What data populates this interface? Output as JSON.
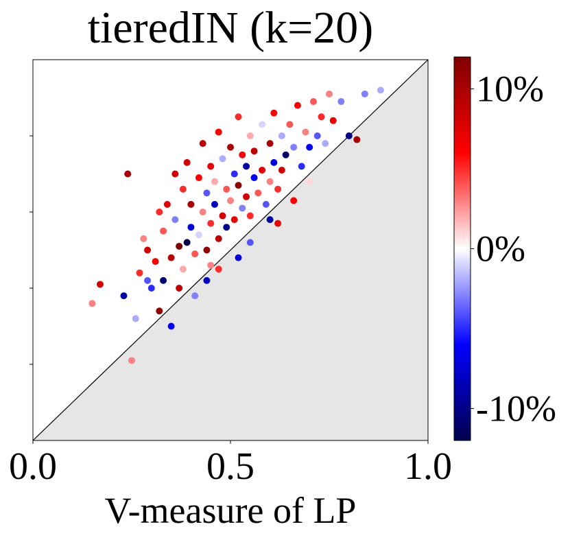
{
  "chart_data": {
    "type": "scatter",
    "title": "tieredIN (k=20)",
    "xlabel": "V-measure of LP",
    "x": [
      0.15,
      0.17,
      0.23,
      0.25,
      0.24,
      0.26,
      0.27,
      0.28,
      0.29,
      0.3,
      0.31,
      0.32,
      0.33,
      0.33,
      0.34,
      0.35,
      0.36,
      0.37,
      0.38,
      0.38,
      0.39,
      0.4,
      0.4,
      0.41,
      0.42,
      0.42,
      0.43,
      0.43,
      0.44,
      0.44,
      0.45,
      0.45,
      0.46,
      0.46,
      0.47,
      0.47,
      0.48,
      0.48,
      0.49,
      0.49,
      0.5,
      0.5,
      0.51,
      0.51,
      0.52,
      0.52,
      0.53,
      0.53,
      0.54,
      0.54,
      0.55,
      0.55,
      0.56,
      0.56,
      0.57,
      0.58,
      0.58,
      0.59,
      0.6,
      0.6,
      0.61,
      0.61,
      0.62,
      0.63,
      0.63,
      0.64,
      0.65,
      0.65,
      0.66,
      0.67,
      0.68,
      0.69,
      0.7,
      0.7,
      0.71,
      0.72,
      0.73,
      0.74,
      0.75,
      0.76,
      0.78,
      0.8,
      0.82,
      0.84,
      0.88,
      0.35,
      0.44,
      0.52,
      0.6,
      0.66,
      0.37,
      0.41,
      0.47,
      0.55,
      0.62,
      0.29,
      0.32,
      0.36,
      0.39,
      0.45
    ],
    "y": [
      0.36,
      0.41,
      0.38,
      0.21,
      0.7,
      0.32,
      0.44,
      0.53,
      0.5,
      0.4,
      0.47,
      0.34,
      0.55,
      0.42,
      0.62,
      0.48,
      0.58,
      0.51,
      0.66,
      0.45,
      0.73,
      0.56,
      0.62,
      0.49,
      0.69,
      0.54,
      0.78,
      0.6,
      0.65,
      0.5,
      0.72,
      0.57,
      0.62,
      0.68,
      0.81,
      0.53,
      0.74,
      0.59,
      0.66,
      0.56,
      0.77,
      0.63,
      0.7,
      0.58,
      0.85,
      0.67,
      0.61,
      0.75,
      0.72,
      0.64,
      0.8,
      0.59,
      0.69,
      0.76,
      0.65,
      0.83,
      0.71,
      0.62,
      0.78,
      0.68,
      0.86,
      0.73,
      0.66,
      0.8,
      0.71,
      0.75,
      0.83,
      0.69,
      0.77,
      0.88,
      0.72,
      0.81,
      0.68,
      0.77,
      0.89,
      0.8,
      0.85,
      0.78,
      0.91,
      0.84,
      0.89,
      0.8,
      0.79,
      0.91,
      0.92,
      0.3,
      0.42,
      0.48,
      0.58,
      0.63,
      0.4,
      0.38,
      0.45,
      0.52,
      0.57,
      0.42,
      0.6,
      0.7,
      0.52,
      0.46
    ],
    "c": [
      3,
      8,
      -9,
      3,
      10,
      -2,
      5,
      3,
      8,
      -5,
      6,
      11,
      4,
      -11,
      7,
      9,
      -3,
      12,
      5,
      2,
      8,
      -7,
      10,
      4,
      6,
      -1,
      9,
      3,
      -4,
      11,
      7,
      5,
      -8,
      2,
      6,
      9,
      -2,
      8,
      4,
      -10,
      10,
      3,
      -5,
      7,
      5,
      11,
      -3,
      6,
      -9,
      8,
      2,
      5,
      -6,
      9,
      4,
      -1,
      7,
      -4,
      10,
      3,
      6,
      -7,
      5,
      -2,
      8,
      -11,
      4,
      0,
      -3,
      6,
      -5,
      3,
      1,
      -6,
      4,
      -4,
      5,
      -2,
      3,
      7,
      -3,
      -10,
      10,
      -3,
      -2,
      -6,
      -8,
      -7,
      -9,
      6,
      9,
      -3,
      5,
      -4,
      7,
      -4,
      5,
      8,
      -12,
      3
    ],
    "xlim": [
      0,
      1
    ],
    "ylim": [
      0,
      1
    ],
    "xticks": [
      {
        "value": 0,
        "label": "0.0"
      },
      {
        "value": 0.5,
        "label": "0.5"
      },
      {
        "value": 1,
        "label": "1.0"
      }
    ],
    "yticks": [
      0.2,
      0.4,
      0.6,
      0.8
    ],
    "ytick_labels": false,
    "diagonal": true,
    "below_diagonal_color": "#e6e6e6",
    "clim": [
      -12,
      12
    ],
    "cticks": [
      {
        "value": -10,
        "label": "-10%"
      },
      {
        "value": 0,
        "label": "0%"
      },
      {
        "value": 10,
        "label": "10%"
      }
    ],
    "colormap": [
      "#00004c",
      "#0000ff",
      "#ffffff",
      "#ff0000",
      "#7f0000"
    ]
  }
}
